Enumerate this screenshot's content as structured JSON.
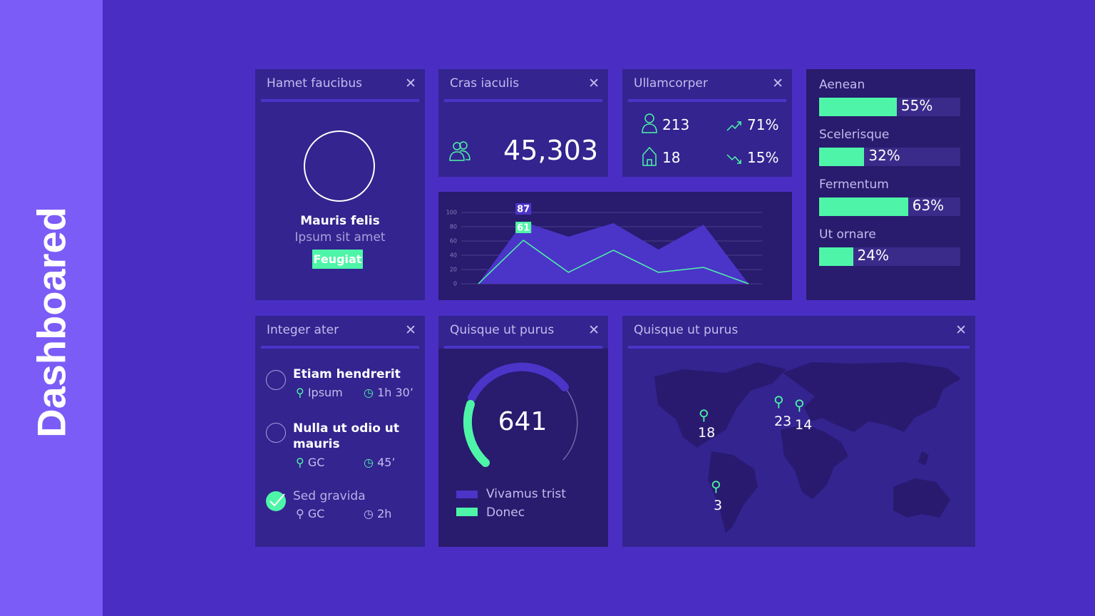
{
  "sidebar": {
    "title": "Dashboared"
  },
  "profile": {
    "title": "Hamet faucibus",
    "name": "Mauris felis",
    "subtitle": "Ipsum sit amet",
    "badge": "Feugiat"
  },
  "total": {
    "title": "Cras iaculis",
    "value": "45,303"
  },
  "stats": {
    "title": "Ullamcorper",
    "items": [
      "213",
      "71%",
      "18",
      "15%"
    ]
  },
  "progress": {
    "xlim": [
      0,
      100
    ],
    "color": "#4ef5a8",
    "items": [
      {
        "label": "Aenean",
        "value": 55,
        "value_label": "55%"
      },
      {
        "label": "Scelerisque",
        "value": 32,
        "value_label": "32%"
      },
      {
        "label": "Fermentum",
        "value": 63,
        "value_label": "63%"
      },
      {
        "label": "Ut ornare",
        "value": 24,
        "value_label": "24%"
      }
    ]
  },
  "chart_data": {
    "type": "area",
    "categories": [
      null,
      null,
      null,
      null,
      null,
      null,
      null
    ],
    "ylim": [
      0,
      100
    ],
    "yticks": [
      0,
      20,
      40,
      60,
      80,
      100
    ],
    "grid": true,
    "series": [
      {
        "type": "area",
        "color": "#4b34c8",
        "values": [
          0,
          87,
          66,
          85,
          48,
          83,
          0
        ],
        "value_labels": [
          null,
          "87",
          null,
          null,
          null,
          null,
          null
        ]
      },
      {
        "type": "line",
        "color": "#4ef5a8",
        "values": [
          0,
          61,
          16,
          47,
          16,
          23,
          0
        ],
        "value_labels": [
          null,
          "61",
          null,
          null,
          null,
          null,
          null
        ]
      }
    ]
  },
  "tasks": {
    "title": "Integer ater",
    "items": [
      {
        "title": "Etiam hendrerit",
        "place": "Ipsum",
        "time": "1h 30’"
      },
      {
        "title": "Nulla ut odio ut mauris",
        "place": "GC",
        "time": "45’"
      },
      {
        "title": "Sed gravida",
        "place": "GC",
        "time": "2h"
      }
    ]
  },
  "gauge": {
    "title": "Quisque ut purus",
    "value": "641",
    "legend": [
      "Vivamus trist",
      "Donec"
    ]
  },
  "map": {
    "title": "Quisque ut purus",
    "pins": [
      "18",
      "23",
      "14",
      "3"
    ]
  }
}
